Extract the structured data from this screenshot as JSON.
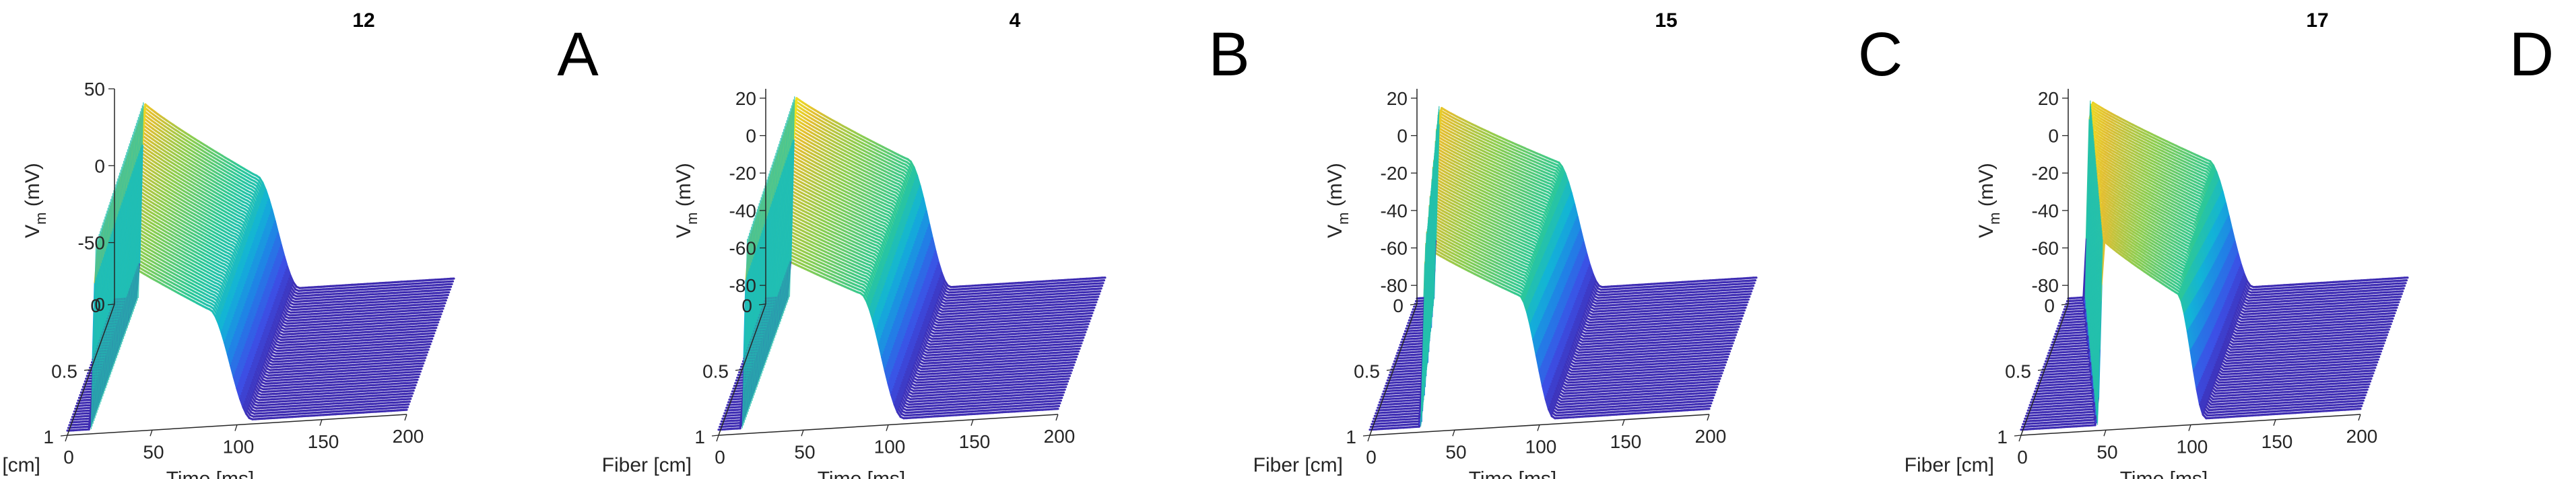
{
  "figure": {
    "panel_count": 4,
    "colors": {
      "surface_low": "#3e2f9e",
      "surface_mid": "#22a9d8",
      "surface_mid2": "#2fbf8f",
      "surface_high": "#f9fb0e",
      "axis": "#262626"
    }
  },
  "chart_data": [
    {
      "type": "surface",
      "panel_id": "panel-a",
      "title": "12",
      "letter": "A",
      "xlabel": "Time [ms]",
      "ylabel": "Fiber [cm]",
      "zlabel": "V",
      "zlabel_sub": "m",
      "zlabel_unit": " (mV)",
      "x_ticks": [
        0,
        50,
        100,
        150,
        200
      ],
      "y_ticks": [
        0,
        0.5,
        1
      ],
      "z_ticks": [
        -50,
        0,
        50
      ],
      "xlim": [
        0,
        200
      ],
      "ylim": [
        0,
        1
      ],
      "zlim": [
        -90,
        50
      ],
      "activation_time_ms": 14,
      "activation_delay_ms": 0,
      "peak_mV": 40,
      "rest_mV": -87,
      "repolarization_end_ms": 100
    },
    {
      "type": "surface",
      "panel_id": "panel-b",
      "title": "4",
      "letter": "B",
      "xlabel": "Time [ms]",
      "ylabel": "Fiber [cm]",
      "zlabel": "V",
      "zlabel_sub": "m",
      "zlabel_unit": " (mV)",
      "x_ticks": [
        0,
        50,
        100,
        150,
        200
      ],
      "y_ticks": [
        0,
        0.5,
        1
      ],
      "z_ticks": [
        -80,
        -60,
        -40,
        -20,
        0,
        20
      ],
      "xlim": [
        0,
        200
      ],
      "ylim": [
        0,
        1
      ],
      "zlim": [
        -90,
        25
      ],
      "activation_time_ms": 14,
      "activation_delay_ms": 0,
      "peak_mV": 20,
      "rest_mV": -87,
      "repolarization_end_ms": 100
    },
    {
      "type": "surface",
      "panel_id": "panel-c",
      "title": "15",
      "letter": "C",
      "xlabel": "Time [ms]",
      "ylabel": "Fiber [cm]",
      "zlabel": "V",
      "zlabel_sub": "m",
      "zlabel_unit": " (mV)",
      "x_ticks": [
        0,
        50,
        100,
        150,
        200
      ],
      "y_ticks": [
        0,
        0.5,
        1
      ],
      "z_ticks": [
        -80,
        -60,
        -40,
        -20,
        0,
        20
      ],
      "xlim": [
        0,
        200
      ],
      "ylim": [
        0,
        1
      ],
      "zlim": [
        -90,
        25
      ],
      "activation_time_ms": 10,
      "activation_delay_ms": 20,
      "peak_mV": 15,
      "rest_mV": -87,
      "repolarization_end_ms": 100
    },
    {
      "type": "surface",
      "panel_id": "panel-d",
      "title": "17",
      "letter": "D",
      "xlabel": "Time [ms]",
      "ylabel": "Fiber [cm]",
      "zlabel": "V",
      "zlabel_sub": "m",
      "zlabel_unit": " (mV)",
      "x_ticks": [
        0,
        50,
        100,
        150,
        200
      ],
      "y_ticks": [
        0,
        0.5,
        1
      ],
      "z_ticks": [
        -80,
        -60,
        -40,
        -20,
        0,
        20
      ],
      "xlim": [
        0,
        200
      ],
      "ylim": [
        0,
        1
      ],
      "zlim": [
        -90,
        25
      ],
      "activation_time_ms": 10,
      "activation_delay_ms": 35,
      "peak_mV": 18,
      "rest_mV": -87,
      "repolarization_end_ms": 100
    }
  ]
}
